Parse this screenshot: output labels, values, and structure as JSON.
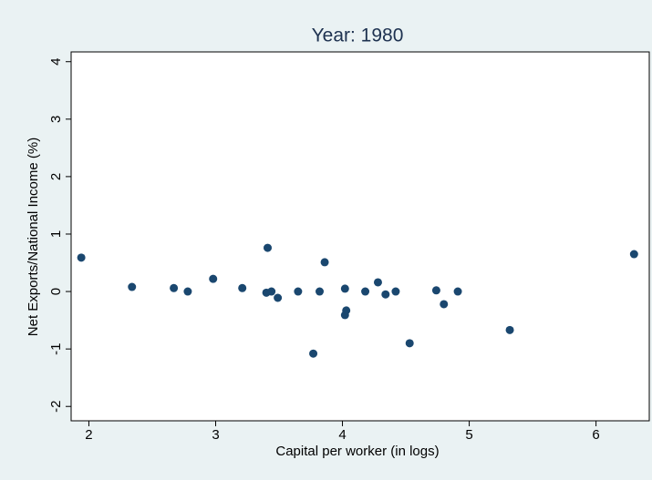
{
  "chart_data": {
    "type": "scatter",
    "title": "Year: 1980",
    "x_label": "Capital per worker (in logs)",
    "y_label": "Net Exports/National Income (%)",
    "color": "#1a476f",
    "x": [
      1.94,
      2.34,
      2.67,
      2.78,
      2.98,
      3.21,
      3.41,
      3.4,
      3.44,
      3.49,
      3.65,
      3.77,
      3.82,
      3.86,
      4.02,
      4.03,
      4.02,
      4.18,
      4.28,
      4.34,
      4.42,
      4.53,
      4.74,
      4.8,
      4.91,
      5.32,
      6.3
    ],
    "values": [
      0.59,
      0.08,
      0.06,
      0.0,
      0.22,
      0.06,
      0.76,
      -0.02,
      0.0,
      -0.11,
      0.0,
      -1.08,
      0.0,
      0.51,
      0.05,
      -0.33,
      -0.41,
      0.0,
      0.16,
      -0.05,
      0.0,
      -0.9,
      0.02,
      -0.22,
      0.0,
      -0.67,
      0.65
    ],
    "xlim": [
      1.86,
      6.42
    ],
    "ylim": [
      -2.25,
      4.17
    ],
    "xticks": [
      2,
      3,
      4,
      5,
      6
    ],
    "yticks": [
      -2,
      -1,
      0,
      1,
      2,
      3,
      4
    ],
    "grid": false
  }
}
